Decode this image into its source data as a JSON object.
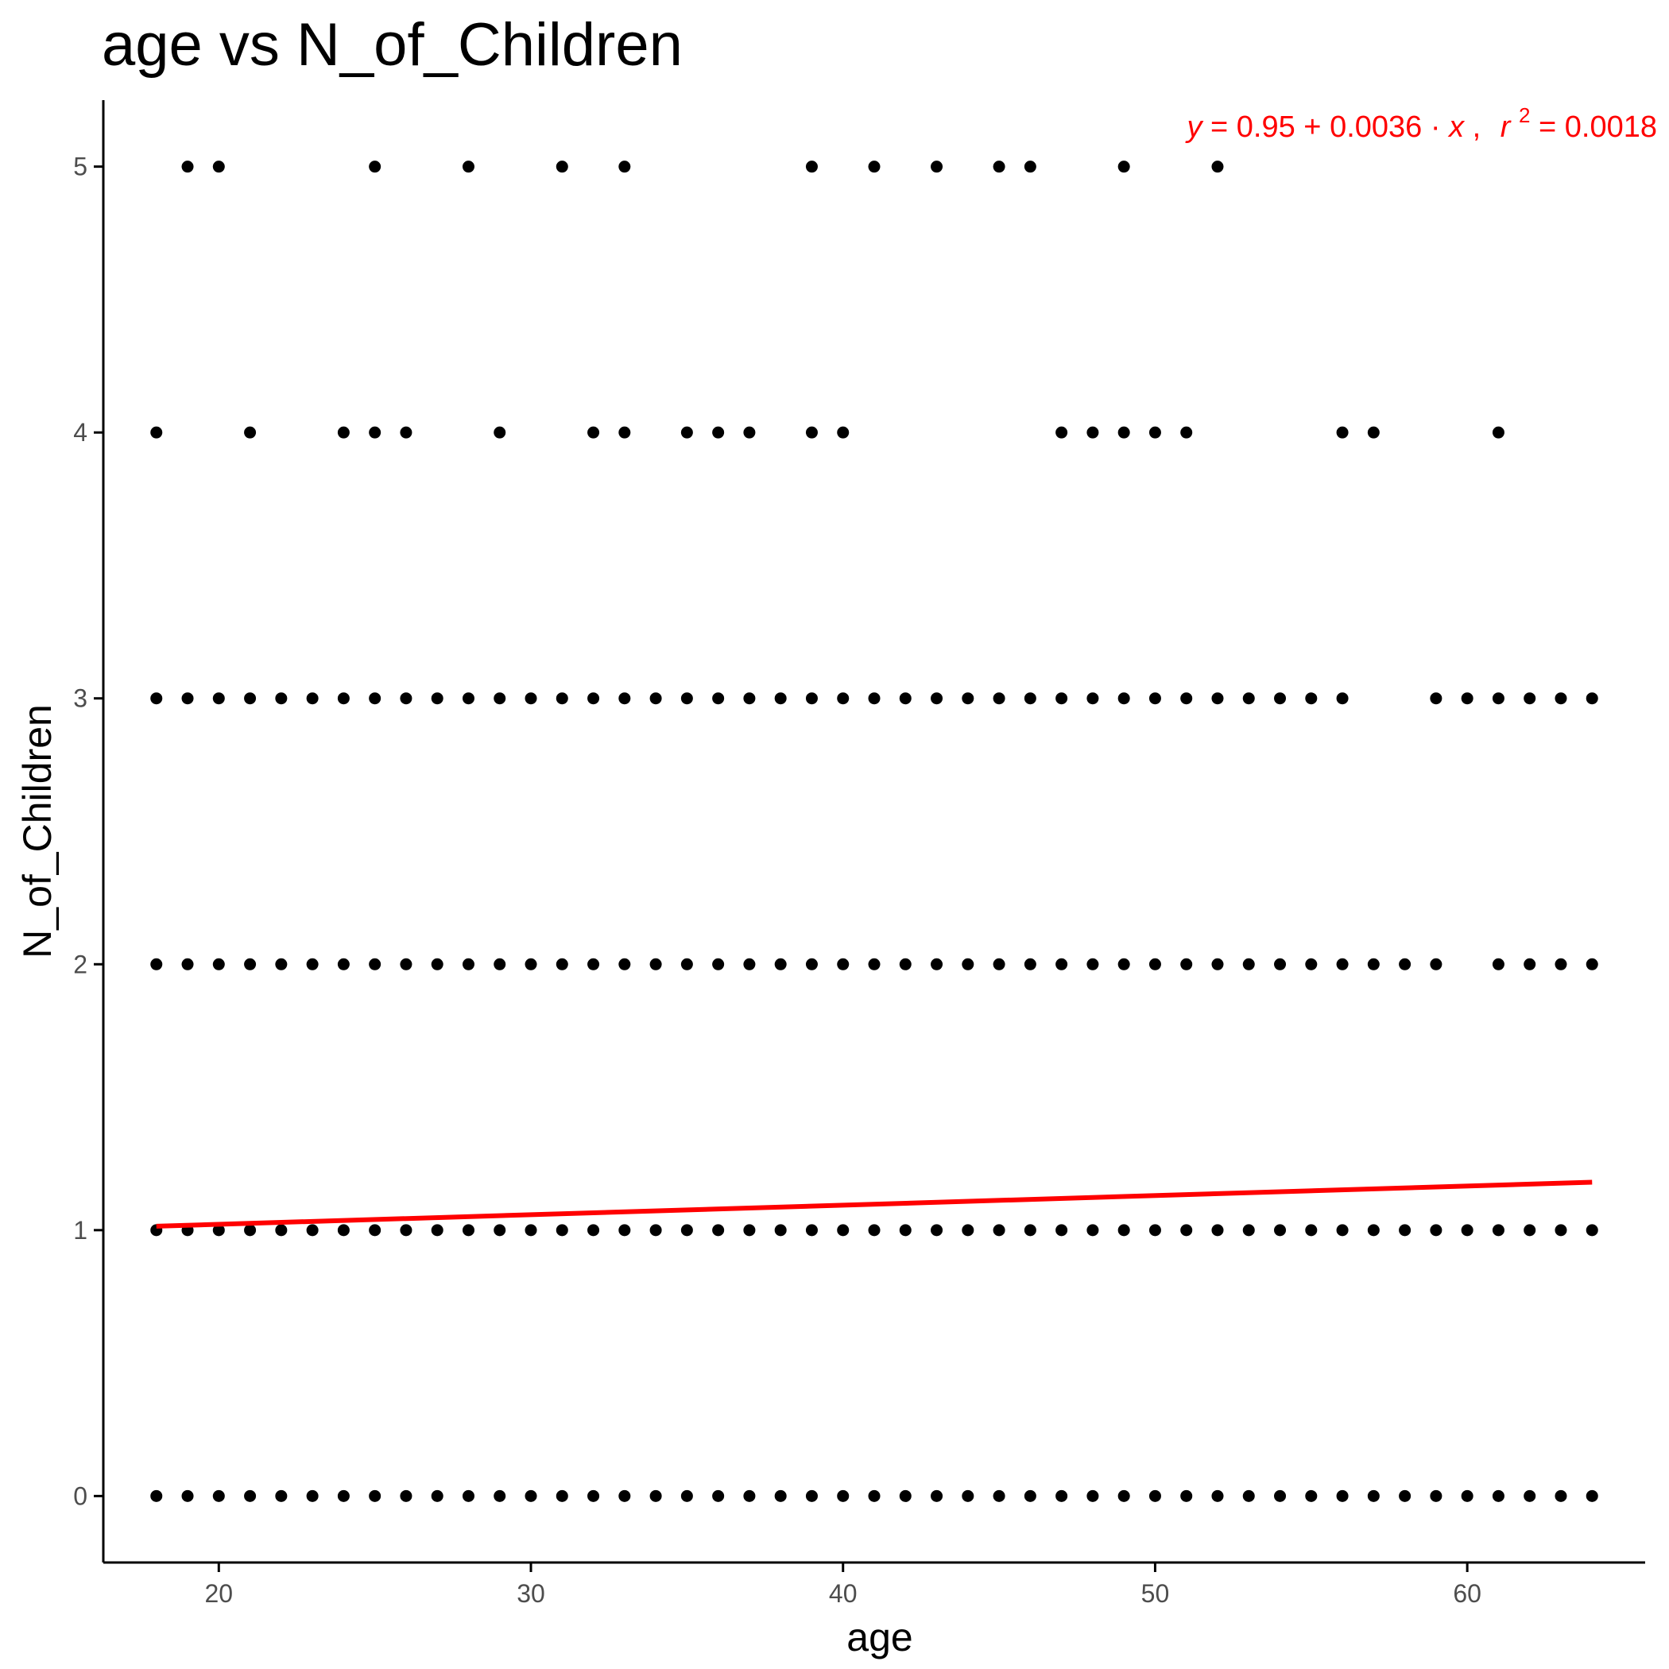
{
  "chart_data": {
    "type": "scatter",
    "title": "age vs N_of_Children",
    "xlabel": "age",
    "ylabel": "N_of_Children",
    "xlim": [
      16.3,
      65.7
    ],
    "ylim": [
      -0.25,
      5.25
    ],
    "x_ticks": [
      20,
      30,
      40,
      50,
      60
    ],
    "y_ticks": [
      0,
      1,
      2,
      3,
      4,
      5
    ],
    "grid": false,
    "legend": "none",
    "point_color": "#000000",
    "fit_color": "#ff0000",
    "series": [
      {
        "points_by_y": [
          {
            "y": 0,
            "x": [
              18,
              19,
              20,
              21,
              22,
              23,
              24,
              25,
              26,
              27,
              28,
              29,
              30,
              31,
              32,
              33,
              34,
              35,
              36,
              37,
              38,
              39,
              40,
              41,
              42,
              43,
              44,
              45,
              46,
              47,
              48,
              49,
              50,
              51,
              52,
              53,
              54,
              55,
              56,
              57,
              58,
              59,
              60,
              61,
              62,
              63,
              64
            ]
          },
          {
            "y": 1,
            "x": [
              18,
              19,
              20,
              21,
              22,
              23,
              24,
              25,
              26,
              27,
              28,
              29,
              30,
              31,
              32,
              33,
              34,
              35,
              36,
              37,
              38,
              39,
              40,
              41,
              42,
              43,
              44,
              45,
              46,
              47,
              48,
              49,
              50,
              51,
              52,
              53,
              54,
              55,
              56,
              57,
              58,
              59,
              60,
              61,
              62,
              63,
              64
            ]
          },
          {
            "y": 2,
            "x": [
              18,
              19,
              20,
              21,
              22,
              23,
              24,
              25,
              26,
              27,
              28,
              29,
              30,
              31,
              32,
              33,
              34,
              35,
              36,
              37,
              38,
              39,
              40,
              41,
              42,
              43,
              44,
              45,
              46,
              47,
              48,
              49,
              50,
              51,
              52,
              53,
              54,
              55,
              56,
              57,
              58,
              59,
              61,
              62,
              63,
              64
            ]
          },
          {
            "y": 3,
            "x": [
              18,
              19,
              20,
              21,
              22,
              23,
              24,
              25,
              26,
              27,
              28,
              29,
              30,
              31,
              32,
              33,
              34,
              35,
              36,
              37,
              38,
              39,
              40,
              41,
              42,
              43,
              44,
              45,
              46,
              47,
              48,
              49,
              50,
              51,
              52,
              53,
              54,
              55,
              56,
              59,
              60,
              61,
              62,
              63,
              64
            ]
          },
          {
            "y": 4,
            "x": [
              18,
              21,
              24,
              25,
              26,
              29,
              32,
              33,
              35,
              36,
              37,
              39,
              40,
              47,
              48,
              49,
              50,
              51,
              56,
              57,
              61
            ]
          },
          {
            "y": 5,
            "x": [
              19,
              20,
              25,
              28,
              31,
              33,
              39,
              41,
              43,
              45,
              46,
              49,
              52
            ]
          }
        ]
      }
    ],
    "regression": {
      "intercept": 0.95,
      "slope": 0.0036,
      "x_range": [
        18,
        64
      ],
      "label": {
        "y": "y",
        "eq": "=",
        "intercept": "0.95",
        "plus": "+",
        "slope": "0.0036",
        "dot": "·",
        "x": "x",
        "sep": ",",
        "r": "r",
        "sup": "2",
        "r2": "= 0.0018"
      }
    }
  }
}
